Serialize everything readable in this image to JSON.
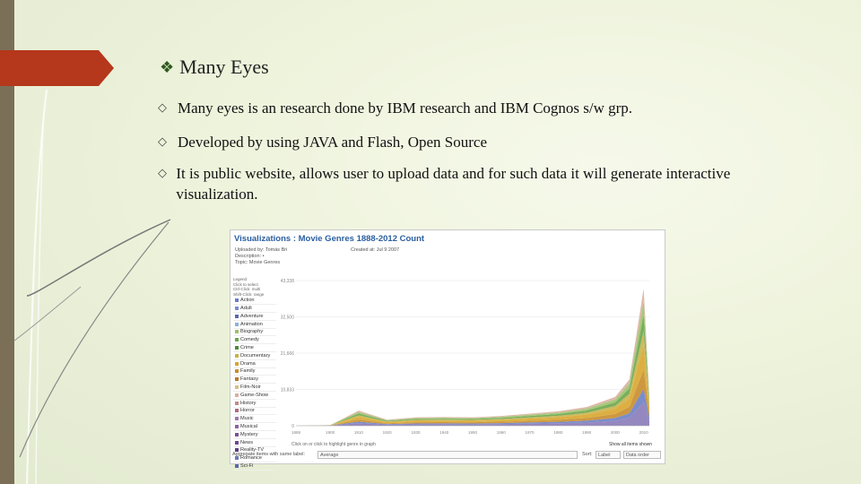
{
  "slide": {
    "title": "Many Eyes",
    "bullets": [
      "Many eyes is an research done by IBM research and IBM Cognos s/w grp.",
      "Developed by using JAVA and Flash, Open Source",
      "It is public website, allows user to upload data and for such data it will generate interactive visualization."
    ],
    "colors": {
      "accent": "#b5371c",
      "bullet": "#2f5a1d",
      "sidebar": "#7b6f57"
    }
  },
  "screenshot": {
    "header": "Visualizations : Movie Genres 1888-2012 Count",
    "meta": [
      "Uploaded by: Tomás Bri",
      "Description: •",
      "Topic: Movie Genres"
    ],
    "created": "Created at: Jul 9 2007",
    "legend_header": [
      "Legend",
      "Click to select",
      "Ctrl-Click: multi",
      "Shift-Click: range"
    ],
    "legend": [
      {
        "name": "Action",
        "color": "#6d7fc4"
      },
      {
        "name": "Adult",
        "color": "#7a8bd0"
      },
      {
        "name": "Adventure",
        "color": "#5b6aa8"
      },
      {
        "name": "Animation",
        "color": "#8fb0d8"
      },
      {
        "name": "Biography",
        "color": "#9cc26a"
      },
      {
        "name": "Comedy",
        "color": "#6aa64c"
      },
      {
        "name": "Crime",
        "color": "#4f8a3c"
      },
      {
        "name": "Documentary",
        "color": "#c9b24a"
      },
      {
        "name": "Drama",
        "color": "#d9a62e"
      },
      {
        "name": "Family",
        "color": "#c88d2c"
      },
      {
        "name": "Fantasy",
        "color": "#b97a2a"
      },
      {
        "name": "Film-Noir",
        "color": "#d6c08a"
      },
      {
        "name": "Game-Show",
        "color": "#d8b1a0"
      },
      {
        "name": "History",
        "color": "#c48a8a"
      },
      {
        "name": "Horror",
        "color": "#b46a7a"
      },
      {
        "name": "Music",
        "color": "#a07aa8"
      },
      {
        "name": "Musical",
        "color": "#8c62a0"
      },
      {
        "name": "Mystery",
        "color": "#7a5294"
      },
      {
        "name": "News",
        "color": "#6a4a8c"
      },
      {
        "name": "Reality-TV",
        "color": "#5c3f80"
      },
      {
        "name": "Romance",
        "color": "#6c7ab4"
      },
      {
        "name": "Sci-Fi",
        "color": "#5a68a8"
      }
    ],
    "y_ticks": [
      "43,338",
      "32,500",
      "21,666",
      "10,833",
      "0"
    ],
    "x_ticks": [
      "1888",
      "1900",
      "1910",
      "1920",
      "1930",
      "1940",
      "1950",
      "1960",
      "1970",
      "1980",
      "1990",
      "2000",
      "2010"
    ],
    "hint": "Click on or click to highlight genre in graph",
    "show_label": "Show all items shown",
    "aggregate_label": "Aggregate items with same label:",
    "aggregate_value": "Average",
    "sort_label": "Sort:",
    "sort_value": "Label",
    "data_order": "Data order"
  },
  "chart_data": {
    "type": "area",
    "title": "Movie Genres 1888-2012 Count",
    "x": [
      1888,
      1900,
      1910,
      1920,
      1930,
      1940,
      1950,
      1960,
      1970,
      1980,
      1990,
      2000,
      2005,
      2008,
      2010,
      2012
    ],
    "total_approx": [
      0,
      200,
      4500,
      1800,
      2500,
      2600,
      2500,
      2900,
      3600,
      4300,
      5600,
      8600,
      13800,
      30000,
      41000,
      9000
    ],
    "ylim": [
      0,
      43338
    ]
  }
}
